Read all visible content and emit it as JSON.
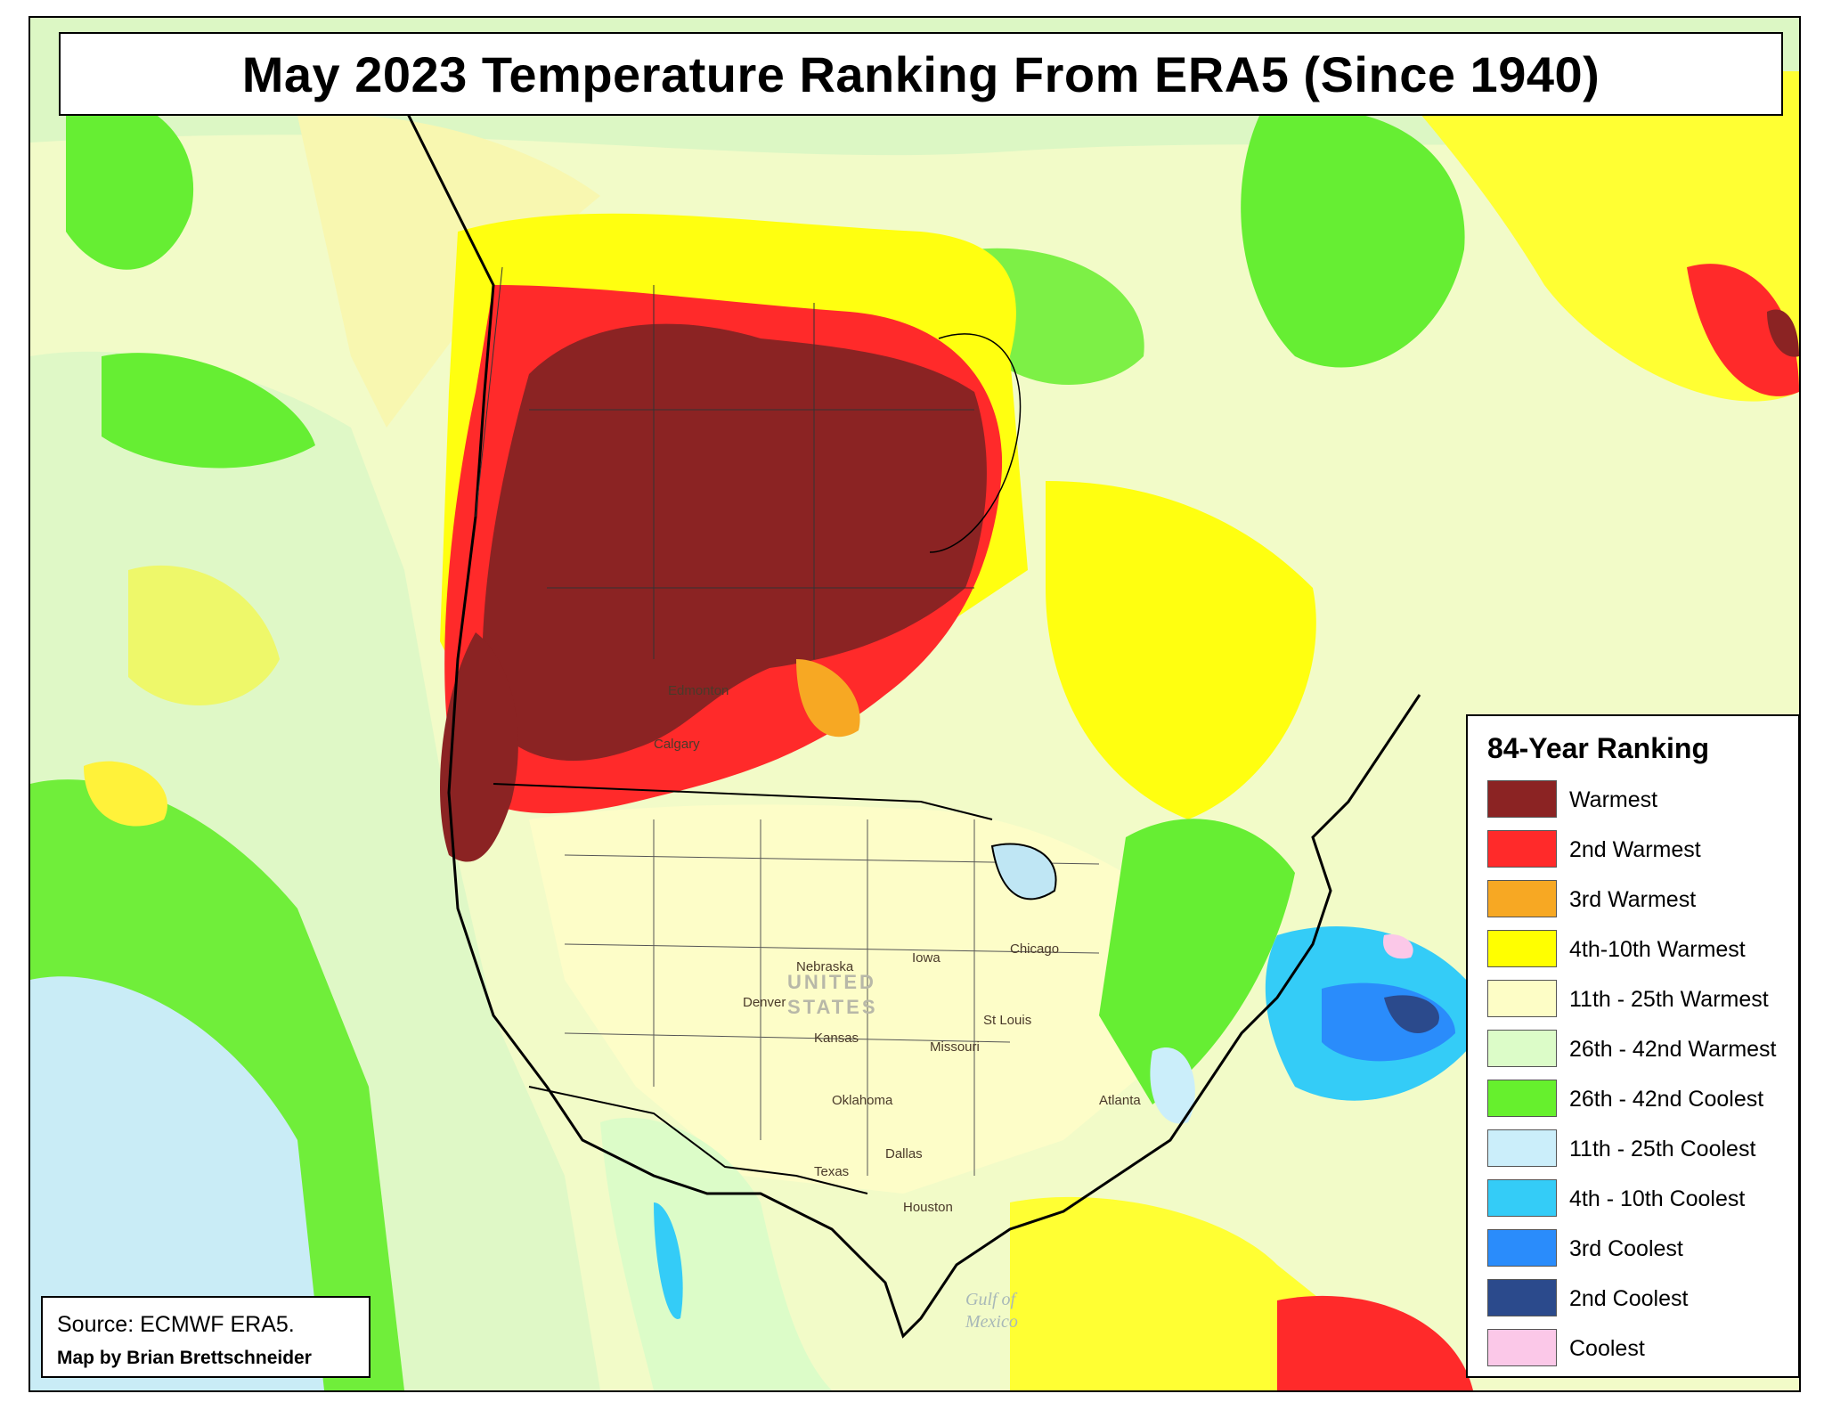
{
  "title": "May 2023 Temperature Ranking From ERA5 (Since 1940)",
  "legend": {
    "title": "84-Year Ranking",
    "items": [
      {
        "label": "Warmest",
        "color": "#8b2323"
      },
      {
        "label": "2nd Warmest",
        "color": "#ff2a2a"
      },
      {
        "label": "3rd Warmest",
        "color": "#f7a823"
      },
      {
        "label": "4th-10th Warmest",
        "color": "#ffff00"
      },
      {
        "label": "11th - 25th Warmest",
        "color": "#fdfdc6"
      },
      {
        "label": "26th - 42nd Warmest",
        "color": "#dcfcc8"
      },
      {
        "label": "26th - 42nd Coolest",
        "color": "#66f02d"
      },
      {
        "label": "11th - 25th Coolest",
        "color": "#cbeefa"
      },
      {
        "label": "4th - 10th Coolest",
        "color": "#34ccf7"
      },
      {
        "label": "3rd Coolest",
        "color": "#2a8cfb"
      },
      {
        "label": "2nd Coolest",
        "color": "#2b4a8c"
      },
      {
        "label": "Coolest",
        "color": "#fbc8e8"
      }
    ]
  },
  "source": {
    "text": "Source: ECMWF ERA5.",
    "credit": "Map by Brian Brettschneider"
  },
  "places": {
    "edmonton": "Edmonton",
    "calgary": "Calgary",
    "denver": "Denver",
    "st_louis": "St Louis",
    "dallas": "Dallas",
    "houston": "Houston",
    "chicago": "Chicago",
    "atlanta": "Atlanta",
    "iowa": "Iowa",
    "nebraska": "Nebraska",
    "kansas": "Kansas",
    "missouri": "Missouri",
    "texas": "Texas",
    "oklahoma": "Oklahoma",
    "united": "UNITED",
    "states": "STATES",
    "gulf1": "Gulf of",
    "gulf2": "Mexico"
  }
}
